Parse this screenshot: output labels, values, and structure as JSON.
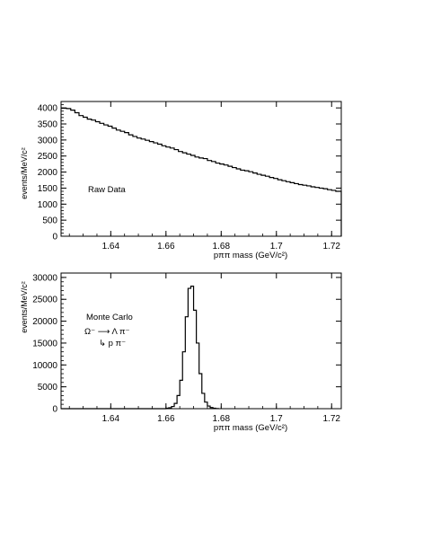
{
  "chart_data": [
    {
      "type": "step",
      "annotation": "Raw Data",
      "xlabel": "pππ  mass (GeV/c²)",
      "ylabel": "events/MeV/c²",
      "xlim": [
        1.622,
        1.7235
      ],
      "ylim": [
        0,
        4200
      ],
      "xticks": [
        "1.64",
        "1.66",
        "1.68",
        "1.7",
        "1.72"
      ],
      "yticks": [
        "0",
        "500",
        "1000",
        "1500",
        "2000",
        "2500",
        "3000",
        "3500",
        "4000"
      ],
      "bin_width": 0.0015,
      "x_start": 1.6225,
      "values": [
        3990,
        3980,
        3930,
        3850,
        3760,
        3710,
        3650,
        3620,
        3570,
        3520,
        3470,
        3430,
        3370,
        3310,
        3270,
        3230,
        3160,
        3110,
        3060,
        3030,
        2990,
        2950,
        2910,
        2870,
        2820,
        2780,
        2750,
        2700,
        2640,
        2600,
        2560,
        2520,
        2470,
        2440,
        2420,
        2360,
        2330,
        2280,
        2250,
        2220,
        2180,
        2140,
        2100,
        2060,
        2040,
        2010,
        1970,
        1930,
        1900,
        1870,
        1830,
        1800,
        1760,
        1730,
        1700,
        1670,
        1640,
        1610,
        1590,
        1570,
        1540,
        1520,
        1500,
        1480,
        1450,
        1430,
        1400
      ]
    },
    {
      "type": "step",
      "annotation": "Monte Carlo",
      "decay_line1": "Ω⁻ ⟶ Λ π⁻",
      "decay_line2": "↳ p π⁻",
      "xlabel": "pππ  mass (GeV/c²)",
      "ylabel": "events/MeV/c²",
      "xlim": [
        1.622,
        1.7235
      ],
      "ylim": [
        0,
        31000
      ],
      "xticks": [
        "1.64",
        "1.66",
        "1.68",
        "1.7",
        "1.72"
      ],
      "yticks": [
        "0",
        "5000",
        "10000",
        "15000",
        "20000",
        "25000",
        "30000"
      ],
      "bin_width": 0.001,
      "x_start": 1.66,
      "values": [
        100,
        200,
        500,
        1200,
        3000,
        6500,
        13000,
        21000,
        27500,
        28000,
        22500,
        15000,
        8000,
        3500,
        1500,
        600,
        250,
        100,
        40
      ]
    }
  ]
}
